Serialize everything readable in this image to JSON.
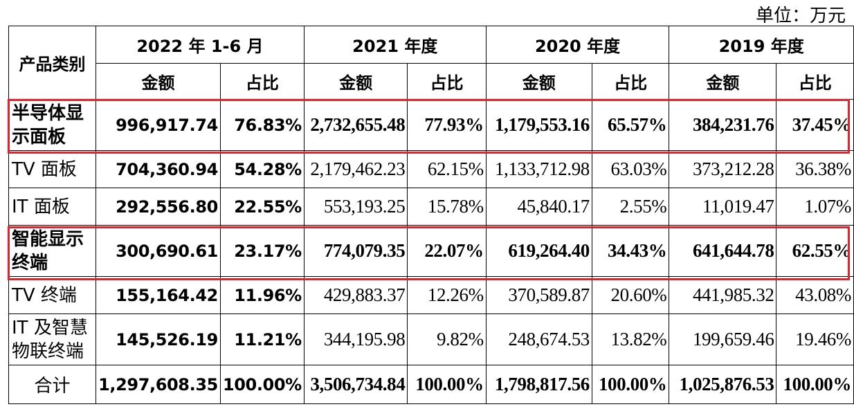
{
  "unit": "单位：万元",
  "header": {
    "category": "产品类别",
    "periods": [
      "2022 年 1-6 月",
      "2021 年度",
      "2020 年度",
      "2019 年度"
    ],
    "amount": "金额",
    "ratio": "占比"
  },
  "rows": [
    {
      "name": "半导体显示面板",
      "bold": true,
      "v": [
        "996,917.74",
        "76.83%",
        "2,732,655.48",
        "77.93%",
        "1,179,553.16",
        "65.57%",
        "384,231.76",
        "37.45%"
      ]
    },
    {
      "name": "TV 面板",
      "bold": false,
      "v": [
        "704,360.94",
        "54.28%",
        "2,179,462.23",
        "62.15%",
        "1,133,712.98",
        "63.03%",
        "373,212.28",
        "36.38%"
      ]
    },
    {
      "name": "IT 面板",
      "bold": false,
      "v": [
        "292,556.80",
        "22.55%",
        "553,193.25",
        "15.78%",
        "45,840.17",
        "2.55%",
        "11,019.47",
        "1.07%"
      ]
    },
    {
      "name": "智能显示终端",
      "bold": true,
      "v": [
        "300,690.61",
        "23.17%",
        "774,079.35",
        "22.07%",
        "619,264.40",
        "34.43%",
        "641,644.78",
        "62.55%"
      ]
    },
    {
      "name": "TV 终端",
      "bold": false,
      "v": [
        "155,164.42",
        "11.96%",
        "429,883.37",
        "12.26%",
        "370,589.87",
        "20.60%",
        "441,985.32",
        "43.08%"
      ]
    },
    {
      "name": "IT 及智慧物联终端",
      "bold": false,
      "v": [
        "145,526.19",
        "11.21%",
        "344,195.98",
        "9.82%",
        "248,674.53",
        "13.82%",
        "199,659.46",
        "19.46%"
      ]
    }
  ],
  "total": {
    "name": "合计",
    "v": [
      "1,297,608.35",
      "100.00%",
      "3,506,734.84",
      "100.00%",
      "1,798,817.56",
      "100.00%",
      "1,025,876.53",
      "100.00%"
    ]
  },
  "highlight_color": "#e8202a"
}
